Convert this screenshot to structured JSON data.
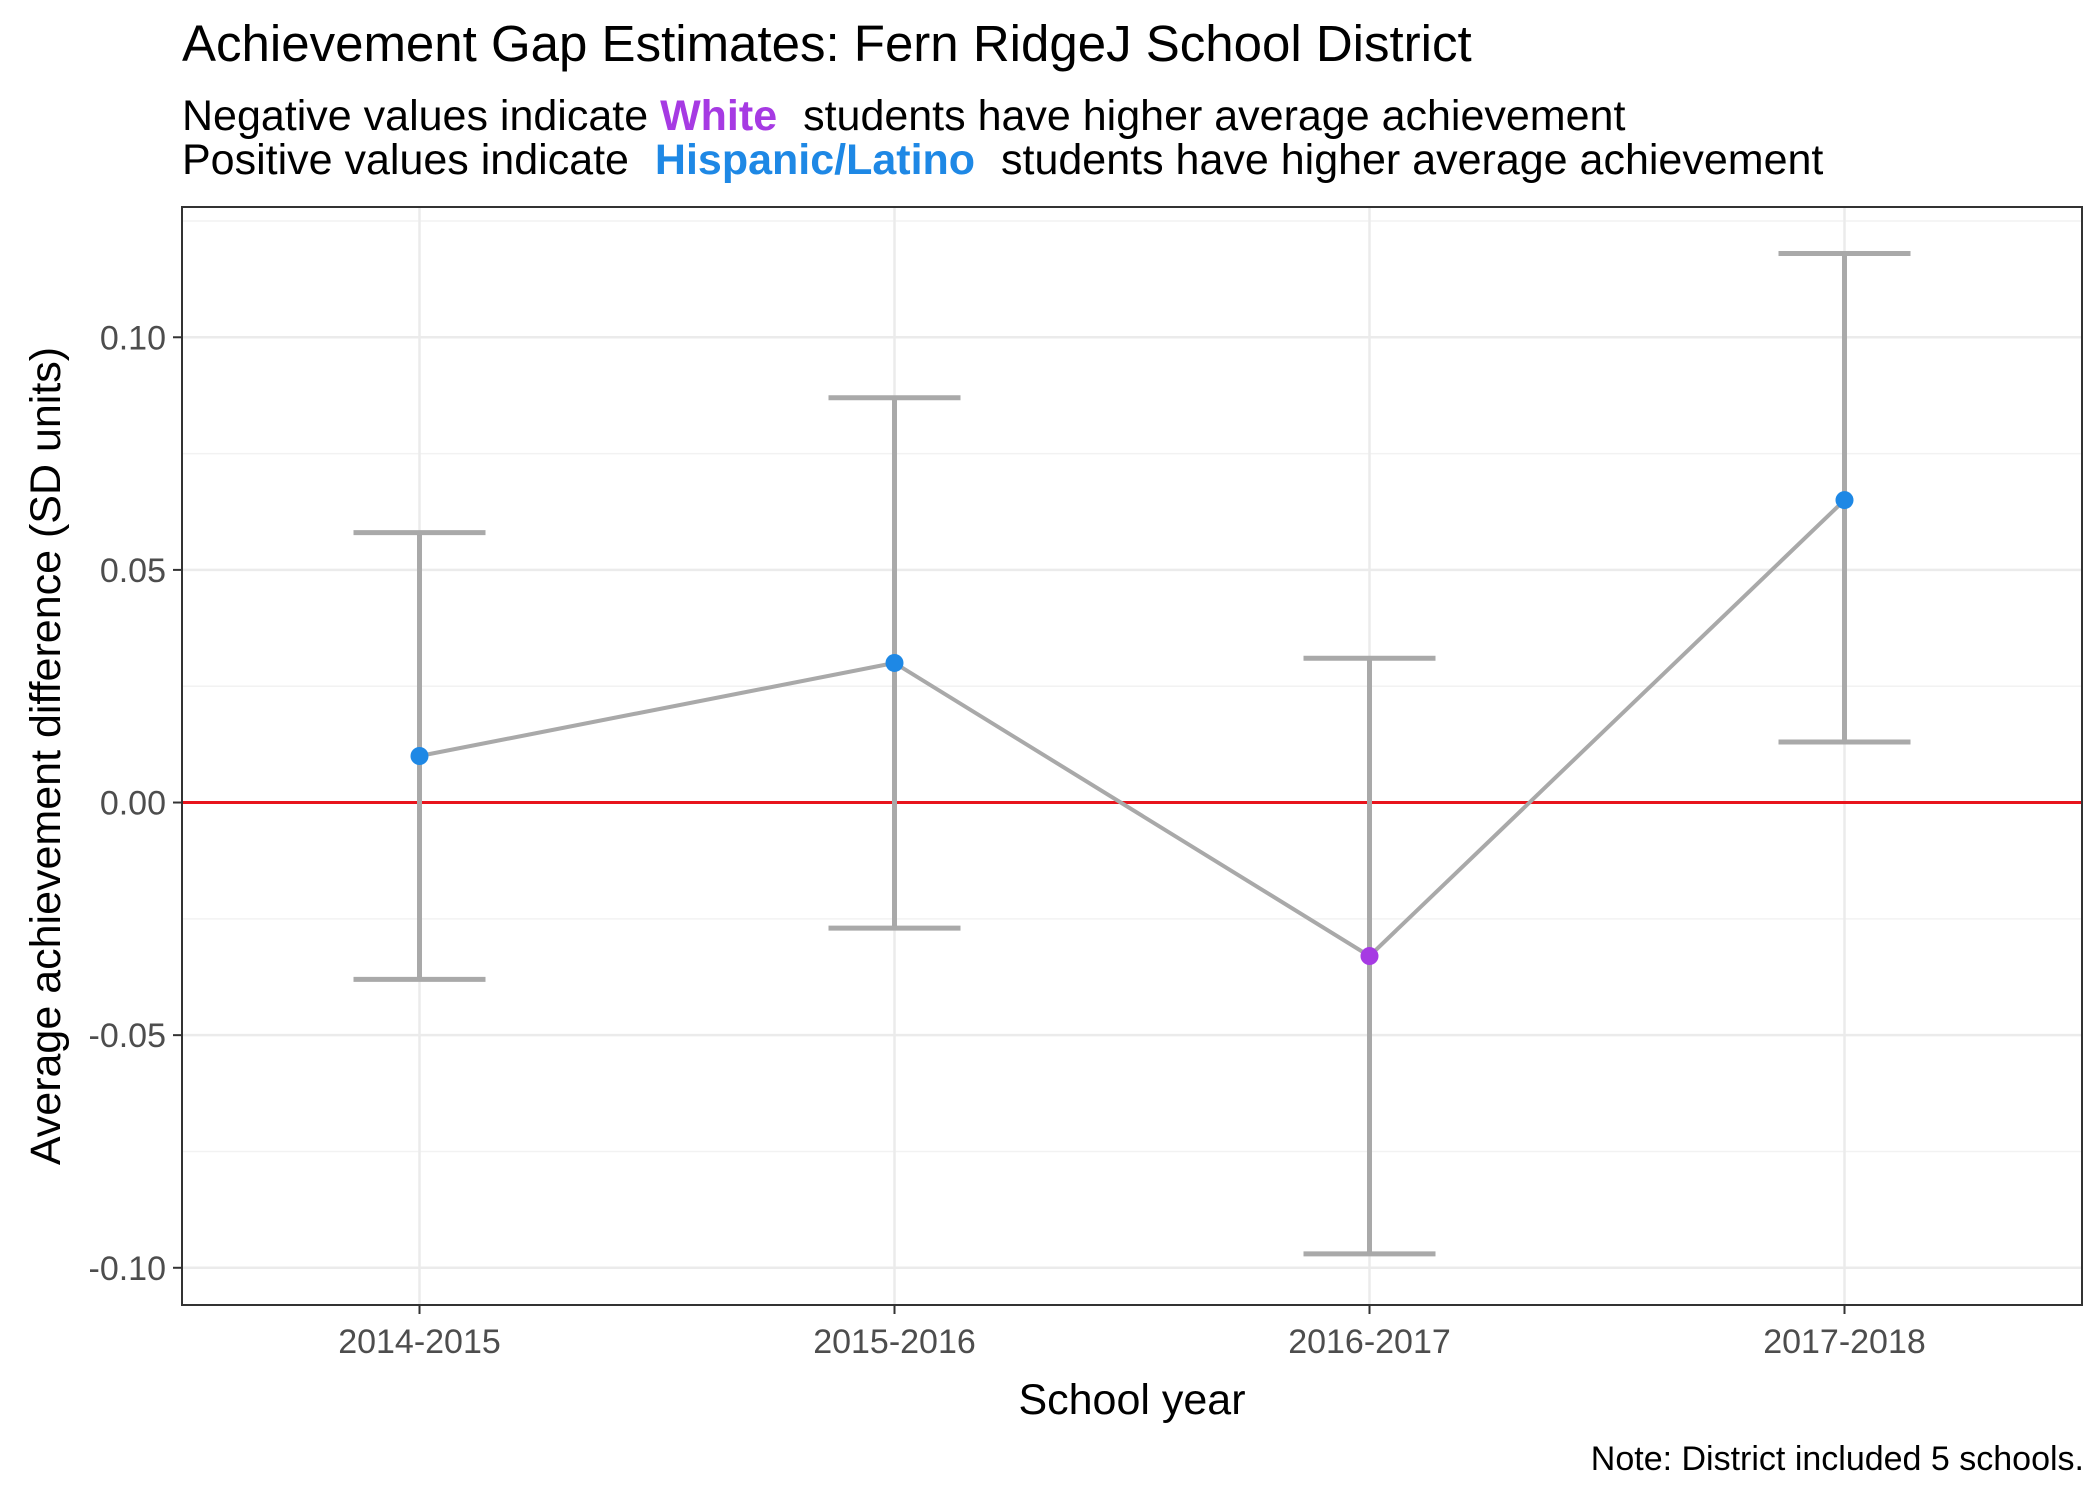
{
  "title": "Achievement Gap Estimates: Fern RidgeJ School District",
  "subtitle": {
    "line1": {
      "prefix": "Negative values indicate",
      "group": "White",
      "suffix": "students have higher average achievement"
    },
    "line2": {
      "prefix": "Positive values indicate",
      "group": "Hispanic/Latino",
      "suffix": "students have higher average achievement"
    }
  },
  "colors": {
    "white_group": "#A63AE3",
    "hispanic_group": "#1E88E5",
    "zero_line": "#E8141C",
    "error_bars": "#A9A9A9"
  },
  "chart_data": {
    "type": "line",
    "title": "Achievement Gap Estimates: Fern RidgeJ School District",
    "xlabel": "School year",
    "ylabel": "Average achievement difference (SD units)",
    "categories": [
      "2014-2015",
      "2015-2016",
      "2016-2017",
      "2017-2018"
    ],
    "values": [
      0.01,
      0.03,
      -0.033,
      0.065
    ],
    "lower": [
      -0.038,
      -0.027,
      -0.097,
      0.013
    ],
    "upper": [
      0.058,
      0.087,
      0.031,
      0.118
    ],
    "point_group": [
      "Hispanic/Latino",
      "Hispanic/Latino",
      "White",
      "Hispanic/Latino"
    ],
    "ylim": [
      -0.108,
      0.128
    ],
    "yticks": [
      -0.1,
      -0.05,
      0.0,
      0.05,
      0.1
    ],
    "ytick_labels": [
      "-0.10",
      "-0.05",
      "0.00",
      "0.05",
      "0.10"
    ],
    "reference_line": 0,
    "grid": true
  },
  "caption": "Note: District included 5 schools."
}
